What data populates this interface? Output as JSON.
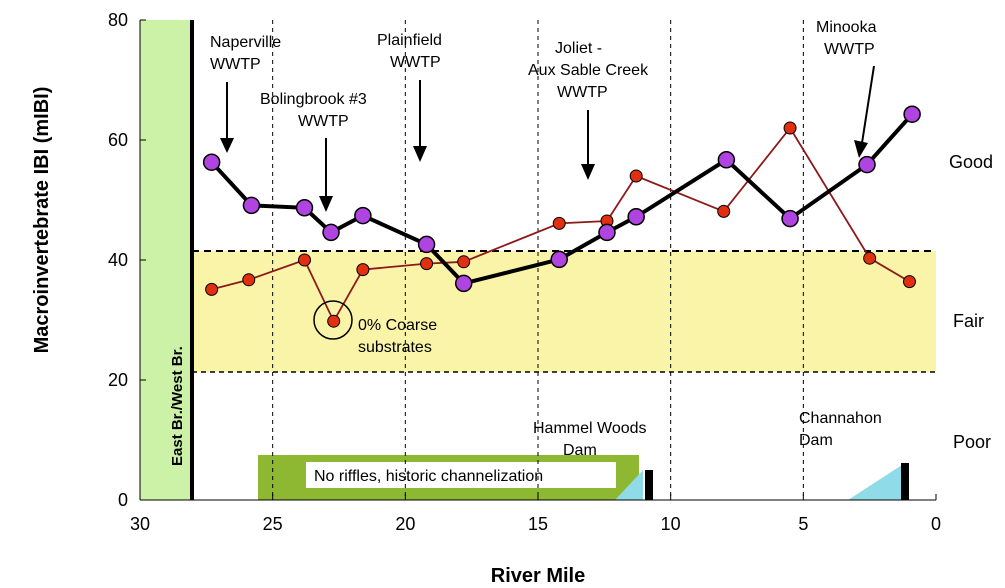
{
  "chart_data": {
    "type": "line",
    "xlabel": "River Mile",
    "ylabel": "Macroinvertebrate IBI (mIBI)",
    "xlim": [
      30,
      0
    ],
    "ylim": [
      0,
      80
    ],
    "x_ticks": [
      30,
      25,
      20,
      15,
      10,
      5,
      0
    ],
    "y_ticks": [
      0,
      20,
      40,
      60,
      80
    ],
    "grid": "dashed vertical lines at river miles 25, 20, 15, 10, 5",
    "legend": "none",
    "series": [
      {
        "color": "#000000",
        "marker_color": "#b044e0",
        "x": [
          27.3,
          25.8,
          23.8,
          22.8,
          21.6,
          19.2,
          17.8,
          14.2,
          12.4,
          11.3,
          7.9,
          5.5,
          2.6,
          0.9
        ],
        "y": [
          56.3,
          49.1,
          48.7,
          44.6,
          47.4,
          42.6,
          36.1,
          40.1,
          44.6,
          47.2,
          56.7,
          46.9,
          55.9,
          64.3
        ]
      },
      {
        "color": "#8b1a1a",
        "marker_color": "#e03010",
        "x": [
          27.3,
          25.9,
          23.8,
          22.7,
          21.6,
          19.2,
          17.8,
          14.2,
          12.4,
          11.3,
          8.0,
          5.5,
          2.5,
          1.0
        ],
        "y": [
          35.1,
          36.7,
          40.0,
          29.8,
          38.4,
          39.4,
          39.7,
          46.1,
          46.5,
          54.0,
          48.1,
          62.0,
          40.3,
          36.4
        ]
      }
    ],
    "bands": [
      {
        "label": "Good"
      },
      {
        "label": "Fair",
        "range": [
          21,
          41.5
        ],
        "color": "#faf4a8"
      },
      {
        "label": "Poor"
      }
    ],
    "thresholds": [
      41.5,
      21
    ],
    "annotations": {
      "naperville": [
        "Naperville",
        "WWTP"
      ],
      "bolingbrook": [
        "Bolingbrook #3",
        "WWTP"
      ],
      "plainfield": [
        "Plainfield",
        "WWTP"
      ],
      "joliet": [
        "Joliet -",
        "Aux Sable Creek",
        "WWTP"
      ],
      "minooka": [
        "Minooka",
        "WWTP"
      ],
      "coarse": [
        "0% Coarse",
        "substrates"
      ],
      "branch": "East Br./West Br.",
      "no_riffles": "No riffles, historic channelization",
      "hammel": [
        "Hammel Woods",
        "Dam"
      ],
      "channahon": [
        "Channahon",
        "Dam"
      ]
    },
    "colors": {
      "left_band": "#ccf2a8",
      "green_bar": "#8fb832",
      "dam_ramp": "#8fdce8",
      "fair_band": "#faf4a8"
    }
  }
}
